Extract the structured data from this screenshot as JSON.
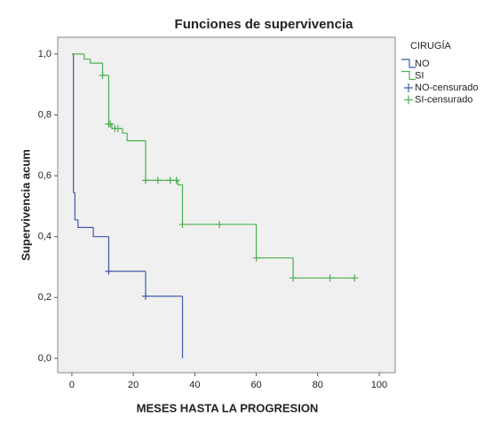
{
  "chart_data": {
    "type": "survival",
    "title": "Funciones de supervivencia",
    "x_label": "MESES HASTA LA PROGRESION",
    "y_label": "Supervivencia acum",
    "legend_title": "CIRUGÍA",
    "legend_position": "right",
    "xlim": [
      -4.6,
      105.2
    ],
    "ylim": [
      -0.047,
      1.055
    ],
    "xticks": [
      0,
      20,
      40,
      60,
      80,
      100
    ],
    "yticks": [
      {
        "value": 0,
        "label": "0,0"
      },
      {
        "value": 0.2,
        "label": "0,2"
      },
      {
        "value": 0.4,
        "label": "0,4"
      },
      {
        "value": 0.6,
        "label": "0,6"
      },
      {
        "value": 0.8,
        "label": "0,8"
      },
      {
        "value": 1.0,
        "label": "1,0"
      }
    ],
    "series": [
      {
        "name": "NO",
        "color": "#3f5aa6",
        "marker": "step",
        "x": [
          0,
          0.5,
          1,
          2,
          7,
          12,
          24,
          36
        ],
        "values": [
          1.0,
          0.545,
          0.455,
          0.43,
          0.4,
          0.286,
          0.204,
          0
        ]
      },
      {
        "name": "SI",
        "color": "#4caf50",
        "marker": "step",
        "x": [
          0,
          4,
          6,
          10,
          12,
          13,
          16.5,
          18,
          24,
          34.5,
          36,
          60,
          72
        ],
        "values": [
          1.0,
          0.983,
          0.97,
          0.93,
          0.77,
          0.755,
          0.74,
          0.715,
          0.585,
          0.57,
          0.44,
          0.33,
          0.264
        ]
      },
      {
        "name": "NO-censurado",
        "color": "#3f5aa6",
        "marker": "plus",
        "x": [
          12,
          24
        ],
        "values": [
          0.286,
          0.204
        ]
      },
      {
        "name": "SI-censurado",
        "color": "#4caf50",
        "marker": "plus",
        "x": [
          10,
          12,
          12.5,
          14,
          15,
          24,
          28,
          32,
          34,
          36,
          48,
          60,
          72,
          84,
          92
        ],
        "values": [
          0.93,
          0.77,
          0.77,
          0.755,
          0.755,
          0.585,
          0.585,
          0.585,
          0.585,
          0.44,
          0.44,
          0.33,
          0.264,
          0.264,
          0.264
        ]
      }
    ]
  }
}
